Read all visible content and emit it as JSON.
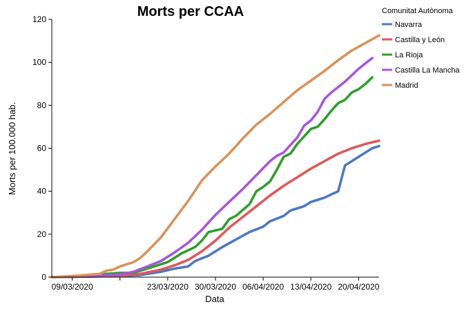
{
  "chart_data": {
    "type": "line",
    "title": "Morts per CCAA",
    "xlabel": "Data",
    "ylabel": "Morts per 100.000 hab.",
    "x_start": "2020-03-06",
    "x_end": "2020-04-23",
    "x_ticks": [
      {
        "date": "2020-03-09",
        "label": "09/03/2020"
      },
      {
        "date": "2020-03-16",
        "label": ""
      },
      {
        "date": "2020-03-23",
        "label": "23/03/2020"
      },
      {
        "date": "2020-03-30",
        "label": "30/03/2020"
      },
      {
        "date": "2020-04-06",
        "label": "06/04/2020"
      },
      {
        "date": "2020-04-13",
        "label": "13/04/2020"
      },
      {
        "date": "2020-04-20",
        "label": "20/04/2020"
      }
    ],
    "ylim": [
      0,
      120
    ],
    "y_ticks": [
      0,
      20,
      40,
      60,
      80,
      100,
      120
    ],
    "grid": false,
    "legend": {
      "title": "Comunitat Autònoma",
      "position": "right"
    },
    "series": [
      {
        "name": "Navarra",
        "color": "#4c78c6",
        "points": [
          [
            "2020-03-06",
            0
          ],
          [
            "2020-03-09",
            0.2
          ],
          [
            "2020-03-12",
            0.4
          ],
          [
            "2020-03-16",
            0.5
          ],
          [
            "2020-03-19",
            1.0
          ],
          [
            "2020-03-22",
            2.5
          ],
          [
            "2020-03-24",
            4.0
          ],
          [
            "2020-03-26",
            5.0
          ],
          [
            "2020-03-27",
            7.5
          ],
          [
            "2020-03-29",
            10.0
          ],
          [
            "2020-03-31",
            14.0
          ],
          [
            "2020-04-02",
            17.5
          ],
          [
            "2020-04-04",
            21.0
          ],
          [
            "2020-04-06",
            23.5
          ],
          [
            "2020-04-07",
            26.0
          ],
          [
            "2020-04-09",
            28.5
          ],
          [
            "2020-04-10",
            31.0
          ],
          [
            "2020-04-12",
            33.0
          ],
          [
            "2020-04-13",
            35.0
          ],
          [
            "2020-04-15",
            37.0
          ],
          [
            "2020-04-16",
            38.5
          ],
          [
            "2020-04-17",
            40.0
          ],
          [
            "2020-04-18",
            52.0
          ],
          [
            "2020-04-20",
            56.0
          ],
          [
            "2020-04-22",
            60.0
          ],
          [
            "2020-04-23",
            61.0
          ]
        ]
      },
      {
        "name": "Castilla y León",
        "color": "#e15759",
        "points": [
          [
            "2020-03-06",
            0
          ],
          [
            "2020-03-09",
            0.2
          ],
          [
            "2020-03-12",
            0.3
          ],
          [
            "2020-03-16",
            0.6
          ],
          [
            "2020-03-19",
            1.5
          ],
          [
            "2020-03-22",
            3.5
          ],
          [
            "2020-03-24",
            5.5
          ],
          [
            "2020-03-26",
            8.0
          ],
          [
            "2020-03-28",
            12.0
          ],
          [
            "2020-03-30",
            17.0
          ],
          [
            "2020-04-01",
            23.0
          ],
          [
            "2020-04-03",
            28.0
          ],
          [
            "2020-04-05",
            33.0
          ],
          [
            "2020-04-07",
            38.0
          ],
          [
            "2020-04-09",
            42.5
          ],
          [
            "2020-04-11",
            46.5
          ],
          [
            "2020-04-13",
            50.5
          ],
          [
            "2020-04-15",
            54.0
          ],
          [
            "2020-04-17",
            57.5
          ],
          [
            "2020-04-19",
            60.0
          ],
          [
            "2020-04-21",
            62.0
          ],
          [
            "2020-04-23",
            63.5
          ]
        ]
      },
      {
        "name": "La Rioja",
        "color": "#2ca02c",
        "points": [
          [
            "2020-03-06",
            0
          ],
          [
            "2020-03-09",
            0.3
          ],
          [
            "2020-03-12",
            0.8
          ],
          [
            "2020-03-14",
            1.5
          ],
          [
            "2020-03-16",
            2.0
          ],
          [
            "2020-03-18",
            2.0
          ],
          [
            "2020-03-19",
            3.0
          ],
          [
            "2020-03-21",
            5.0
          ],
          [
            "2020-03-23",
            7.0
          ],
          [
            "2020-03-25",
            11.0
          ],
          [
            "2020-03-27",
            14.0
          ],
          [
            "2020-03-28",
            17.0
          ],
          [
            "2020-03-29",
            21.0
          ],
          [
            "2020-03-31",
            22.5
          ],
          [
            "2020-04-01",
            27.0
          ],
          [
            "2020-04-02",
            28.5
          ],
          [
            "2020-04-04",
            34.0
          ],
          [
            "2020-04-05",
            40.0
          ],
          [
            "2020-04-06",
            42.0
          ],
          [
            "2020-04-07",
            44.5
          ],
          [
            "2020-04-08",
            50.0
          ],
          [
            "2020-04-09",
            56.0
          ],
          [
            "2020-04-10",
            57.5
          ],
          [
            "2020-04-11",
            62.0
          ],
          [
            "2020-04-12",
            65.5
          ],
          [
            "2020-04-13",
            69.0
          ],
          [
            "2020-04-14",
            70.0
          ],
          [
            "2020-04-15",
            73.5
          ],
          [
            "2020-04-16",
            77.5
          ],
          [
            "2020-04-17",
            81.0
          ],
          [
            "2020-04-18",
            82.5
          ],
          [
            "2020-04-19",
            86.0
          ],
          [
            "2020-04-20",
            87.5
          ],
          [
            "2020-04-21",
            90.0
          ],
          [
            "2020-04-22",
            93.0
          ]
        ]
      },
      {
        "name": "Castilla La Mancha",
        "color": "#a855e0",
        "points": [
          [
            "2020-03-06",
            0
          ],
          [
            "2020-03-09",
            0.3
          ],
          [
            "2020-03-12",
            0.5
          ],
          [
            "2020-03-14",
            0.8
          ],
          [
            "2020-03-16",
            1.2
          ],
          [
            "2020-03-18",
            2.5
          ],
          [
            "2020-03-20",
            5.0
          ],
          [
            "2020-03-22",
            7.5
          ],
          [
            "2020-03-24",
            11.5
          ],
          [
            "2020-03-26",
            16.0
          ],
          [
            "2020-03-28",
            22.0
          ],
          [
            "2020-03-30",
            29.0
          ],
          [
            "2020-04-01",
            35.0
          ],
          [
            "2020-04-03",
            41.0
          ],
          [
            "2020-04-05",
            47.5
          ],
          [
            "2020-04-07",
            54.0
          ],
          [
            "2020-04-08",
            56.5
          ],
          [
            "2020-04-09",
            58.0
          ],
          [
            "2020-04-10",
            61.5
          ],
          [
            "2020-04-11",
            65.0
          ],
          [
            "2020-04-12",
            70.5
          ],
          [
            "2020-04-13",
            73.0
          ],
          [
            "2020-04-14",
            77.0
          ],
          [
            "2020-04-15",
            83.0
          ],
          [
            "2020-04-16",
            86.0
          ],
          [
            "2020-04-17",
            88.5
          ],
          [
            "2020-04-18",
            91.0
          ],
          [
            "2020-04-19",
            94.0
          ],
          [
            "2020-04-20",
            97.0
          ],
          [
            "2020-04-21",
            99.5
          ],
          [
            "2020-04-22",
            102.0
          ]
        ]
      },
      {
        "name": "Madrid",
        "color": "#d9925a",
        "points": [
          [
            "2020-03-06",
            0
          ],
          [
            "2020-03-09",
            0.5
          ],
          [
            "2020-03-11",
            1.0
          ],
          [
            "2020-03-13",
            1.5
          ],
          [
            "2020-03-14",
            3.0
          ],
          [
            "2020-03-15",
            3.5
          ],
          [
            "2020-03-16",
            5.0
          ],
          [
            "2020-03-18",
            7.0
          ],
          [
            "2020-03-19",
            9.0
          ],
          [
            "2020-03-20",
            12.0
          ],
          [
            "2020-03-22",
            18.5
          ],
          [
            "2020-03-24",
            27.0
          ],
          [
            "2020-03-26",
            35.5
          ],
          [
            "2020-03-28",
            45.0
          ],
          [
            "2020-03-30",
            51.5
          ],
          [
            "2020-04-01",
            57.5
          ],
          [
            "2020-04-03",
            64.5
          ],
          [
            "2020-04-05",
            71.0
          ],
          [
            "2020-04-07",
            76.0
          ],
          [
            "2020-04-09",
            81.5
          ],
          [
            "2020-04-11",
            87.0
          ],
          [
            "2020-04-13",
            91.5
          ],
          [
            "2020-04-15",
            96.0
          ],
          [
            "2020-04-17",
            101.0
          ],
          [
            "2020-04-19",
            105.5
          ],
          [
            "2020-04-21",
            109.0
          ],
          [
            "2020-04-23",
            112.5
          ]
        ]
      }
    ]
  }
}
